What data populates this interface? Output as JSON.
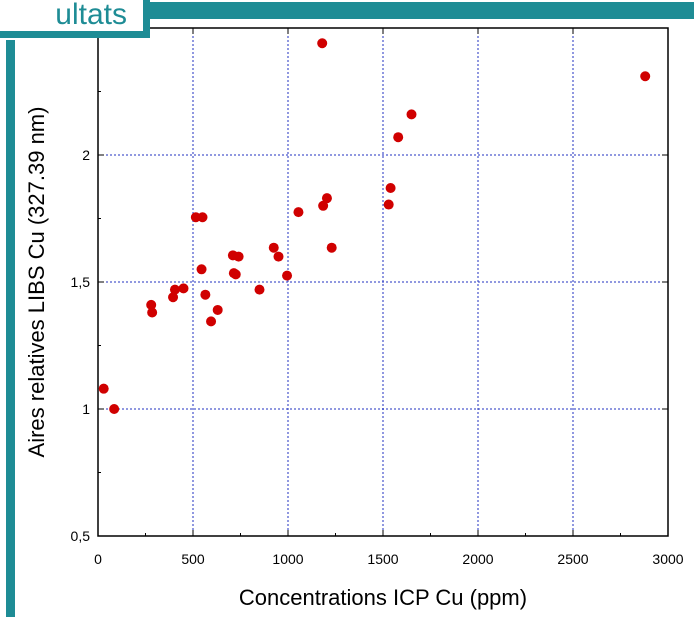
{
  "header": {
    "title_fragment": "ultats"
  },
  "colors": {
    "accent": "#1E8C95",
    "point": "#D00000",
    "grid": "#2030C0"
  },
  "chart_data": {
    "type": "scatter",
    "title": "",
    "xlabel": "Concentrations ICP Cu (ppm)",
    "ylabel": "Aires relatives LIBS Cu (327.39 nm)",
    "xlim": [
      0,
      3000
    ],
    "ylim": [
      0.5,
      2.5
    ],
    "xticks": [
      0,
      500,
      1000,
      1500,
      2000,
      2500,
      3000
    ],
    "xtick_labels": [
      "0",
      "500",
      "1000",
      "1500",
      "2000",
      "2500",
      "3000"
    ],
    "yticks": [
      0.5,
      1,
      1.5,
      2
    ],
    "ytick_labels": [
      "0,5",
      "1",
      "1,5",
      "2"
    ],
    "grid": true,
    "points": [
      {
        "x": 30,
        "y": 1.08
      },
      {
        "x": 85,
        "y": 1.0
      },
      {
        "x": 280,
        "y": 1.41
      },
      {
        "x": 285,
        "y": 1.38
      },
      {
        "x": 395,
        "y": 1.44
      },
      {
        "x": 405,
        "y": 1.47
      },
      {
        "x": 450,
        "y": 1.475
      },
      {
        "x": 515,
        "y": 1.755
      },
      {
        "x": 550,
        "y": 1.755
      },
      {
        "x": 545,
        "y": 1.55
      },
      {
        "x": 565,
        "y": 1.45
      },
      {
        "x": 595,
        "y": 1.345
      },
      {
        "x": 630,
        "y": 1.39
      },
      {
        "x": 710,
        "y": 1.605
      },
      {
        "x": 715,
        "y": 1.535
      },
      {
        "x": 725,
        "y": 1.53
      },
      {
        "x": 740,
        "y": 1.6
      },
      {
        "x": 850,
        "y": 1.47
      },
      {
        "x": 925,
        "y": 1.635
      },
      {
        "x": 950,
        "y": 1.6
      },
      {
        "x": 995,
        "y": 1.525
      },
      {
        "x": 1055,
        "y": 1.775
      },
      {
        "x": 1180,
        "y": 2.44
      },
      {
        "x": 1185,
        "y": 1.8
      },
      {
        "x": 1205,
        "y": 1.83
      },
      {
        "x": 1230,
        "y": 1.635
      },
      {
        "x": 1530,
        "y": 1.805
      },
      {
        "x": 1540,
        "y": 1.87
      },
      {
        "x": 1580,
        "y": 2.07
      },
      {
        "x": 1650,
        "y": 2.16
      },
      {
        "x": 2880,
        "y": 2.31
      }
    ]
  }
}
